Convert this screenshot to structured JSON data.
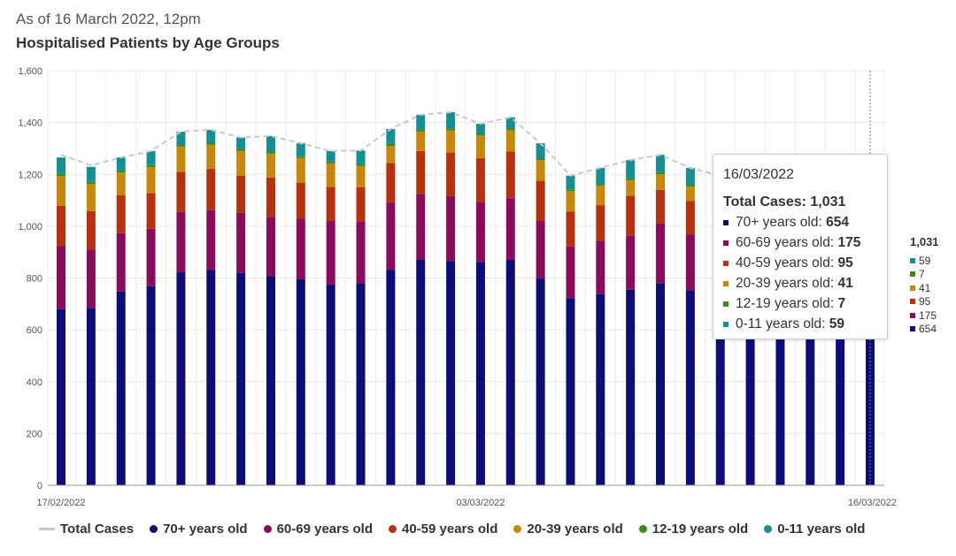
{
  "header": {
    "subtitle": "As of 16 March 2022, 12pm",
    "title": "Hospitalised Patients by Age Groups"
  },
  "chart_data": {
    "type": "bar",
    "stacked": true,
    "y_ticks": [
      "0",
      "200",
      "400",
      "600",
      "800",
      "1,000",
      "1,200",
      "1,400",
      "1,600"
    ],
    "ylim": [
      0,
      1600
    ],
    "x_tick_labels": [
      "17/02/2022",
      "03/03/2022",
      "16/03/2022"
    ],
    "grid": true,
    "dates": [
      "17/02/2022",
      "18/02/2022",
      "19/02/2022",
      "20/02/2022",
      "21/02/2022",
      "22/02/2022",
      "23/02/2022",
      "24/02/2022",
      "25/02/2022",
      "26/02/2022",
      "27/02/2022",
      "28/02/2022",
      "01/03/2022",
      "02/03/2022",
      "03/03/2022",
      "04/03/2022",
      "05/03/2022",
      "06/03/2022",
      "07/03/2022",
      "08/03/2022",
      "09/03/2022",
      "10/03/2022",
      "11/03/2022",
      "12/03/2022",
      "13/03/2022",
      "14/03/2022",
      "15/03/2022",
      "16/03/2022"
    ],
    "total_cases": [
      1275,
      1235,
      1265,
      1290,
      1365,
      1372,
      1342,
      1348,
      1320,
      1290,
      1292,
      1375,
      1430,
      1440,
      1395,
      1420,
      1320,
      1195,
      1225,
      1255,
      1275,
      1225,
      1195,
      1160,
      1125,
      1095,
      1055,
      1031
    ],
    "series": [
      {
        "name": "70+ years old",
        "color": "#0d0d7a",
        "values": [
          680,
          685,
          748,
          768,
          822,
          832,
          820,
          808,
          795,
          775,
          780,
          832,
          870,
          866,
          862,
          870,
          798,
          722,
          738,
          755,
          780,
          752,
          735,
          720,
          705,
          690,
          670,
          654
        ]
      },
      {
        "name": "60-69 years old",
        "color": "#8a0a5e",
        "values": [
          243,
          225,
          225,
          222,
          233,
          230,
          232,
          228,
          235,
          245,
          238,
          260,
          255,
          250,
          232,
          238,
          222,
          200,
          205,
          208,
          230,
          215,
          205,
          195,
          190,
          185,
          180,
          175
        ]
      },
      {
        "name": "40-59 years old",
        "color": "#b8300e",
        "values": [
          155,
          148,
          147,
          138,
          155,
          160,
          143,
          152,
          138,
          132,
          132,
          152,
          165,
          168,
          168,
          180,
          155,
          135,
          138,
          155,
          130,
          130,
          120,
          112,
          108,
          104,
          100,
          95
        ]
      },
      {
        "name": "20-39 years old",
        "color": "#c9870a",
        "values": [
          115,
          105,
          87,
          100,
          97,
          92,
          95,
          92,
          95,
          90,
          82,
          66,
          75,
          85,
          88,
          82,
          80,
          78,
          75,
          58,
          60,
          55,
          53,
          50,
          47,
          45,
          43,
          41
        ]
      },
      {
        "name": "12-19 years old",
        "color": "#3f8a16",
        "values": [
          10,
          8,
          8,
          8,
          8,
          8,
          8,
          8,
          7,
          7,
          8,
          8,
          8,
          8,
          6,
          8,
          7,
          7,
          7,
          8,
          8,
          8,
          7,
          7,
          7,
          7,
          7,
          7
        ]
      },
      {
        "name": "0-11 years old",
        "color": "#138f95",
        "values": [
          62,
          58,
          50,
          54,
          50,
          50,
          44,
          60,
          50,
          41,
          52,
          57,
          57,
          63,
          39,
          42,
          58,
          53,
          62,
          71,
          67,
          65,
          75,
          76,
          68,
          64,
          55,
          59
        ]
      }
    ],
    "legend": {
      "position": "bottom",
      "total_label": "Total Cases",
      "total_color": "#c8c8c8"
    }
  },
  "tooltip": {
    "date": "16/03/2022",
    "total_label": "Total Cases:",
    "total_value": "1,031",
    "rows": [
      {
        "label": "70+ years old:",
        "value": "654",
        "color": "#0d0d7a"
      },
      {
        "label": "60-69 years old:",
        "value": "175",
        "color": "#8a0a5e"
      },
      {
        "label": "40-59 years old:",
        "value": "95",
        "color": "#b8300e"
      },
      {
        "label": "20-39 years old:",
        "value": "41",
        "color": "#c9870a"
      },
      {
        "label": "12-19 years old:",
        "value": "7",
        "color": "#3f8a16"
      },
      {
        "label": "0-11 years old:",
        "value": "59",
        "color": "#138f95"
      }
    ]
  },
  "side_labels": {
    "total": "1,031",
    "rows": [
      {
        "value": "59",
        "color": "#138f95"
      },
      {
        "value": "7",
        "color": "#3f8a16"
      },
      {
        "value": "41",
        "color": "#c9870a"
      },
      {
        "value": "95",
        "color": "#b8300e"
      },
      {
        "value": "175",
        "color": "#8a0a5e"
      },
      {
        "value": "654",
        "color": "#0d0d7a"
      }
    ]
  }
}
